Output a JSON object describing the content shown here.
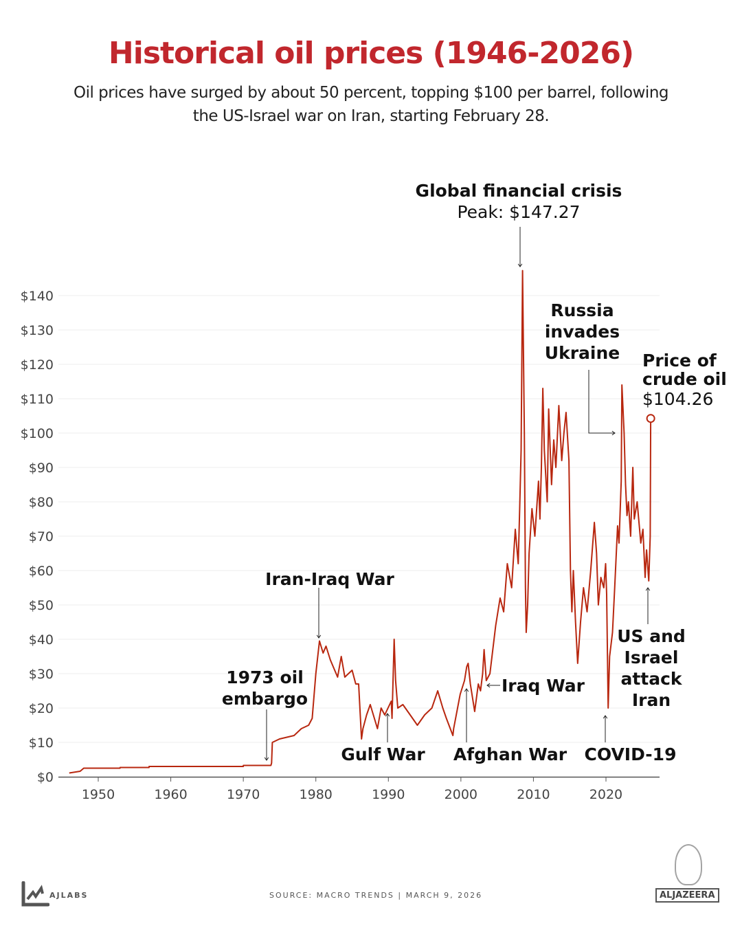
{
  "title": "Historical oil prices (1946-2026)",
  "subtitle": "Oil prices have surged by about 50 percent, topping $100 per barrel, following the US-Israel war on Iran, starting February 28.",
  "footer": {
    "brand": "AJLABS",
    "source": "SOURCE:  MACRO TRENDS  |   MARCH 9, 2026",
    "logo": "ALJAZEERA"
  },
  "chart_data": {
    "type": "line",
    "title": "Historical oil prices (1946-2026)",
    "xlim": [
      1946,
      2027
    ],
    "ylim": [
      0,
      140
    ],
    "x_ticks": [
      1950,
      1960,
      1970,
      1980,
      1990,
      2000,
      2010,
      2020
    ],
    "y_ticks": [
      0,
      10,
      20,
      30,
      40,
      50,
      60,
      70,
      80,
      90,
      100,
      110,
      120,
      130,
      140
    ],
    "y_tick_labels": [
      "$0",
      "$10",
      "$20",
      "$30",
      "$40",
      "$50",
      "$60",
      "$70",
      "$80",
      "$90",
      "$100",
      "$110",
      "$120",
      "$130",
      "$140"
    ],
    "grid": true,
    "line_color": "#b8270f",
    "series": [
      {
        "x": [
          1946,
          1947.5,
          1948,
          1953,
          1953.01,
          1957,
          1957.01,
          1970,
          1970.01,
          1973.8,
          1973.9,
          1974,
          1975,
          1977,
          1978,
          1979,
          1979.5,
          1980,
          1980.5,
          1981,
          1981.4,
          1982,
          1983,
          1983.5,
          1984,
          1985,
          1985.5,
          1985.9,
          1986.3,
          1986.5,
          1987,
          1987.5,
          1988.5,
          1989,
          1989.5,
          1990.4,
          1990.5,
          1990.8,
          1991,
          1991.3,
          1992,
          1993,
          1994,
          1995,
          1996,
          1996.8,
          1997.5,
          1998,
          1998.9,
          1999,
          1999.9,
          2000.5,
          2000.8,
          2001,
          2001.3,
          2001.9,
          2002.4,
          2002.7,
          2003,
          2003.2,
          2003.5,
          2004,
          2004.8,
          2005.4,
          2005.9,
          2006.4,
          2007,
          2007.5,
          2007.9,
          2008.1,
          2008.3,
          2008.5,
          2008.75,
          2008.9,
          2009.0,
          2009.2,
          2009.4,
          2009.8,
          2010.2,
          2010.7,
          2010.9,
          2011.1,
          2011.3,
          2011.5,
          2011.9,
          2012.1,
          2012.5,
          2012.8,
          2013.1,
          2013.5,
          2013.9,
          2014.2,
          2014.5,
          2014.9,
          2015.1,
          2015.3,
          2015.5,
          2015.8,
          2016.1,
          2016.5,
          2016.9,
          2017.4,
          2017.9,
          2018.4,
          2018.7,
          2018.95,
          2019.3,
          2019.7,
          2019.95,
          2020.1,
          2020.3,
          2020.5,
          2020.9,
          2021.2,
          2021.6,
          2021.8,
          2022.1,
          2022.2,
          2022.5,
          2022.7,
          2022.9,
          2023.1,
          2023.4,
          2023.7,
          2023.9,
          2024.3,
          2024.8,
          2025.1,
          2025.4,
          2025.6,
          2025.9,
          2026.1,
          2026.17
        ],
        "y": [
          1.1,
          1.6,
          2.5,
          2.5,
          2.7,
          2.7,
          3.0,
          3.0,
          3.3,
          3.3,
          4,
          10,
          11,
          12,
          14,
          15,
          17,
          30,
          39.5,
          36,
          38,
          34,
          29,
          35,
          29,
          31,
          27,
          27,
          11,
          14,
          18,
          21,
          14,
          20,
          18,
          22,
          17,
          40,
          28,
          20,
          21,
          18,
          15,
          18,
          20,
          25,
          20,
          17,
          12,
          14,
          24,
          28,
          32,
          33,
          27,
          19,
          27,
          25,
          30,
          37,
          28,
          30,
          44,
          52,
          48,
          62,
          55,
          72,
          62,
          78,
          95,
          147.27,
          100,
          55,
          42,
          50,
          65,
          78,
          70,
          86,
          75,
          90,
          113,
          95,
          80,
          107,
          85,
          98,
          90,
          108,
          92,
          100,
          106,
          92,
          60,
          48,
          60,
          45,
          33,
          45,
          55,
          48,
          60,
          74,
          65,
          50,
          58,
          55,
          62,
          53,
          20,
          35,
          42,
          55,
          73,
          68,
          86,
          114,
          100,
          85,
          76,
          80,
          70,
          90,
          75,
          80,
          68,
          72,
          58,
          66,
          57,
          70,
          104.26
        ]
      }
    ],
    "annotations": [
      {
        "label": "Global financial crisis",
        "detail": "Peak: $147.27",
        "x": 2008.5,
        "y": 147.27
      },
      {
        "label": "Russia invades Ukraine",
        "x": 2022.2,
        "y": 100
      },
      {
        "label": "Price of crude oil",
        "detail": "$104.26",
        "x": 2026.17,
        "y": 104.26
      },
      {
        "label": "Iran-Iraq War",
        "x": 1980.7,
        "y": 40
      },
      {
        "label": "1973 oil embargo",
        "x": 1973.6,
        "y": 4
      },
      {
        "label": "Gulf War",
        "x": 1990.4,
        "y": 18
      },
      {
        "label": "Afghan War",
        "x": 2001.1,
        "y": 26
      },
      {
        "label": "Iraq War",
        "x": 2003.8,
        "y": 27
      },
      {
        "label": "COVID-19",
        "x": 2020.0,
        "y": 18
      },
      {
        "label": "US and Israel attack Iran",
        "x": 2026.0,
        "y": 55
      }
    ]
  }
}
